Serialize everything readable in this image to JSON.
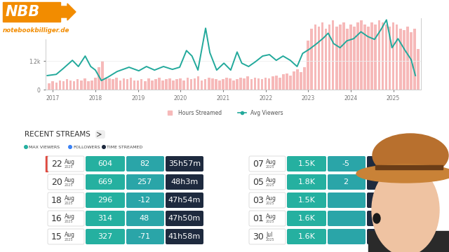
{
  "logo": {
    "title": "NBB",
    "subtitle": "notebookbilliger.de"
  },
  "chart_data": {
    "type": "line",
    "grid": true,
    "legend": "bottom",
    "xlim": [
      2016.83,
      2025.65
    ],
    "xticks": [
      2017,
      2018,
      2019,
      2020,
      2021,
      2022,
      2023,
      2024,
      2025
    ],
    "ylim": [
      0,
      3000
    ],
    "yticks": [
      0,
      {
        "value": 1200,
        "label": "1.2k"
      }
    ],
    "y2lim": [
      0,
      350
    ],
    "y2ticks": [],
    "series": [
      {
        "name": "Hours Streamed",
        "type": "bar",
        "axis": "y2",
        "color": "#f6b9b9",
        "x": [
          2016.917,
          2017.0,
          2017.083,
          2017.167,
          2017.25,
          2017.333,
          2017.417,
          2017.5,
          2017.583,
          2017.667,
          2017.75,
          2017.833,
          2017.917,
          2018.0,
          2018.083,
          2018.167,
          2018.25,
          2018.333,
          2018.417,
          2018.5,
          2018.583,
          2018.667,
          2018.75,
          2018.833,
          2018.917,
          2019.0,
          2019.083,
          2019.167,
          2019.25,
          2019.333,
          2019.417,
          2019.5,
          2019.583,
          2019.667,
          2019.75,
          2019.833,
          2019.917,
          2020.0,
          2020.083,
          2020.167,
          2020.25,
          2020.333,
          2020.417,
          2020.5,
          2020.583,
          2020.667,
          2020.75,
          2020.833,
          2020.917,
          2021.0,
          2021.083,
          2021.167,
          2021.25,
          2021.333,
          2021.417,
          2021.5,
          2021.583,
          2021.667,
          2021.75,
          2021.833,
          2021.917,
          2022.0,
          2022.083,
          2022.167,
          2022.25,
          2022.333,
          2022.417,
          2022.5,
          2022.583,
          2022.667,
          2022.75,
          2022.833,
          2022.917,
          2023.0,
          2023.083,
          2023.167,
          2023.25,
          2023.333,
          2023.417,
          2023.5,
          2023.583,
          2023.667,
          2023.75,
          2023.833,
          2023.917,
          2024.0,
          2024.083,
          2024.167,
          2024.25,
          2024.333,
          2024.417,
          2024.5,
          2024.583,
          2024.667,
          2024.75,
          2024.833,
          2024.917,
          2025.0,
          2025.083,
          2025.167,
          2025.25,
          2025.333,
          2025.417,
          2025.5,
          2025.583
        ],
        "values": [
          30,
          40,
          35,
          45,
          40,
          50,
          45,
          40,
          50,
          45,
          55,
          40,
          45,
          60,
          110,
          140,
          60,
          55,
          50,
          60,
          45,
          55,
          50,
          60,
          45,
          45,
          50,
          40,
          55,
          45,
          50,
          60,
          45,
          50,
          55,
          45,
          50,
          55,
          45,
          60,
          50,
          55,
          65,
          45,
          50,
          60,
          55,
          50,
          45,
          50,
          60,
          55,
          45,
          50,
          60,
          55,
          65,
          50,
          60,
          55,
          50,
          60,
          55,
          65,
          70,
          60,
          75,
          80,
          70,
          90,
          100,
          85,
          110,
          240,
          300,
          320,
          310,
          330,
          300,
          320,
          340,
          310,
          320,
          330,
          300,
          320,
          310,
          330,
          340,
          320,
          310,
          330,
          320,
          340,
          330,
          320,
          310,
          330,
          320,
          300,
          290,
          310,
          280,
          300,
          200
        ]
      },
      {
        "name": "Avg Viewers",
        "type": "line",
        "color": "#22a99b",
        "x": [
          2016.87,
          2017.08,
          2017.24,
          2017.46,
          2017.6,
          2017.76,
          2017.89,
          2018.0,
          2018.14,
          2018.3,
          2018.51,
          2018.79,
          2019.02,
          2019.2,
          2019.39,
          2019.6,
          2019.81,
          2019.98,
          2020.14,
          2020.27,
          2020.41,
          2020.59,
          2020.69,
          2020.85,
          2021.02,
          2021.18,
          2021.33,
          2021.44,
          2021.6,
          2021.76,
          2021.93,
          2022.09,
          2022.25,
          2022.41,
          2022.58,
          2022.74,
          2022.87,
          2023.03,
          2023.2,
          2023.36,
          2023.47,
          2023.6,
          2023.75,
          2023.91,
          2024.07,
          2024.24,
          2024.4,
          2024.56,
          2024.71,
          2024.84,
          2024.97,
          2025.11,
          2025.28,
          2025.42,
          2025.52
        ],
        "values": [
          590,
          640,
          880,
          1230,
          970,
          1410,
          970,
          820,
          380,
          530,
          760,
          940,
          790,
          970,
          820,
          970,
          850,
          940,
          1640,
          1410,
          820,
          2580,
          1550,
          820,
          1110,
          820,
          1580,
          1110,
          970,
          1170,
          1410,
          1470,
          1230,
          1410,
          1230,
          970,
          1520,
          1700,
          1930,
          2170,
          2370,
          1930,
          1760,
          2050,
          2140,
          2430,
          2230,
          2110,
          2520,
          2930,
          1760,
          2140,
          1640,
          1260,
          590
        ]
      }
    ]
  },
  "recent_streams": {
    "title": "RECENT STREAMS",
    "legend": [
      {
        "label": "MAX VIEWERS",
        "color": "#25b0a0"
      },
      {
        "label": "FOLLOWERS",
        "color": "#3b82f6"
      },
      {
        "label": "TIME STREAMED",
        "color": "#1e2a3e"
      }
    ],
    "columns": [
      [
        {
          "day": "22",
          "month": "Aug",
          "year": "2025",
          "max_viewers": "604",
          "followers": "82",
          "time": "35h57m"
        },
        {
          "day": "20",
          "month": "Aug",
          "year": "2025",
          "max_viewers": "669",
          "followers": "257",
          "time": "48h3m"
        },
        {
          "day": "18",
          "month": "Aug",
          "year": "2025",
          "max_viewers": "296",
          "followers": "-12",
          "time": "47h54m"
        },
        {
          "day": "16",
          "month": "Aug",
          "year": "2025",
          "max_viewers": "314",
          "followers": "48",
          "time": "47h50m"
        },
        {
          "day": "15",
          "month": "Aug",
          "year": "2025",
          "max_viewers": "327",
          "followers": "-71",
          "time": "41h58m"
        }
      ],
      [
        {
          "day": "07",
          "month": "Aug",
          "year": "2025",
          "max_viewers": "1.5K",
          "followers": "-5",
          "time": null
        },
        {
          "day": "05",
          "month": "Aug",
          "year": "2025",
          "max_viewers": "1.8K",
          "followers": "2",
          "time": null
        },
        {
          "day": "03",
          "month": "Aug",
          "year": "2025",
          "max_viewers": "1.5K",
          "followers": null,
          "time": null
        },
        {
          "day": "01",
          "month": "Aug",
          "year": "2025",
          "max_viewers": "1.6K",
          "followers": null,
          "time": null
        },
        {
          "day": "30",
          "month": "Jul",
          "year": "2025",
          "max_viewers": "1.6K",
          "followers": null,
          "time": null
        }
      ]
    ]
  }
}
